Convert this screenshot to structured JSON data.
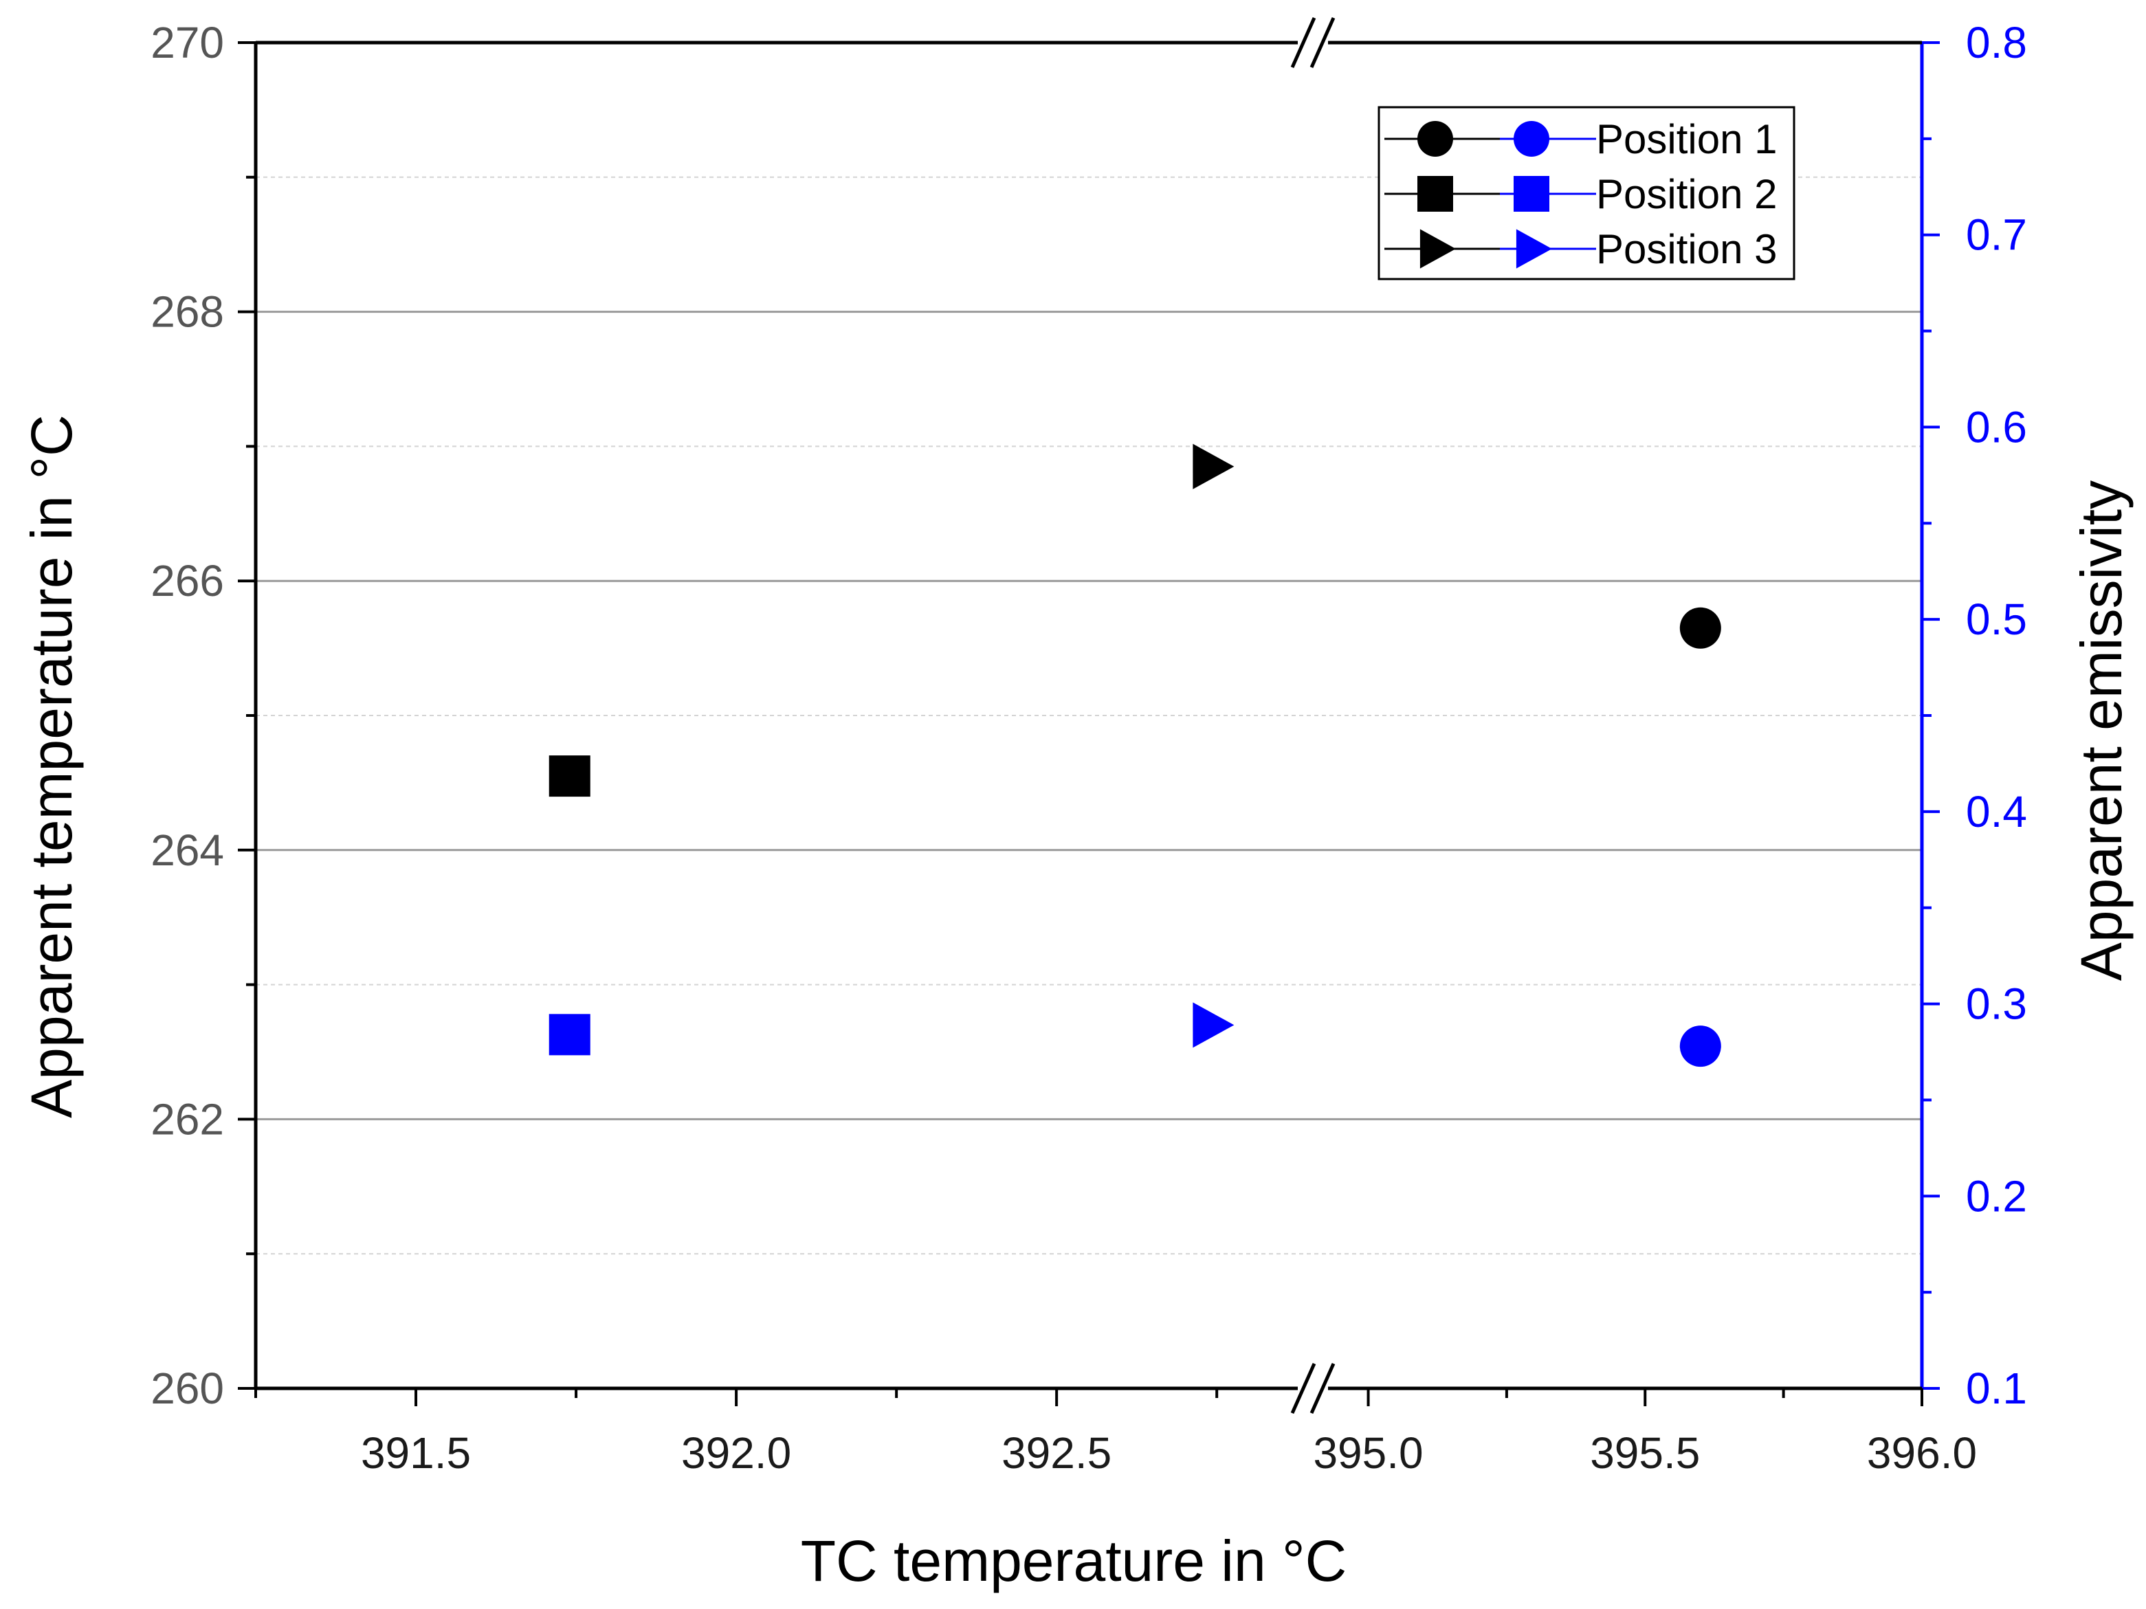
{
  "chart_data": {
    "type": "scatter",
    "xlabel": "TC temperature in °C",
    "ylabel_left": "Apparent temperature in °C",
    "ylabel_right": "Apparent emissivity",
    "x_axis_break": {
      "segment1_range": [
        391.25,
        392.9
      ],
      "segment2_range": [
        394.9,
        396.0
      ],
      "tick_labels": [
        "391.5",
        "392.0",
        "392.5",
        "395.0",
        "395.5",
        "396.0"
      ],
      "tick_values": [
        391.5,
        392.0,
        392.5,
        395.0,
        395.5,
        396.0
      ]
    },
    "ylim_left": [
      260,
      270
    ],
    "yticks_left": [
      "260",
      "262",
      "264",
      "266",
      "268",
      "270"
    ],
    "ylim_right": [
      0.1,
      0.8
    ],
    "yticks_right": [
      "0.1",
      "0.2",
      "0.3",
      "0.4",
      "0.5",
      "0.6",
      "0.7",
      "0.8"
    ],
    "grid": true,
    "legend_position": "top-right",
    "legend": [
      "Position 1",
      "Position 2",
      "Position 3"
    ],
    "series": [
      {
        "name": "Position 1",
        "axis": "left",
        "marker": "circle",
        "color": "#000000",
        "x": 395.6,
        "y": 265.65
      },
      {
        "name": "Position 2",
        "axis": "left",
        "marker": "square",
        "color": "#000000",
        "x": 391.74,
        "y": 264.55
      },
      {
        "name": "Position 3",
        "axis": "left",
        "marker": "triangle-right",
        "color": "#000000",
        "x": 392.74,
        "y": 266.85
      },
      {
        "name": "Position 1",
        "axis": "right",
        "marker": "circle",
        "color": "#0000ff",
        "x": 395.6,
        "y": 0.278
      },
      {
        "name": "Position 2",
        "axis": "right",
        "marker": "square",
        "color": "#0000ff",
        "x": 391.74,
        "y": 0.284
      },
      {
        "name": "Position 3",
        "axis": "right",
        "marker": "triangle-right",
        "color": "#0000ff",
        "x": 392.74,
        "y": 0.289
      }
    ]
  }
}
